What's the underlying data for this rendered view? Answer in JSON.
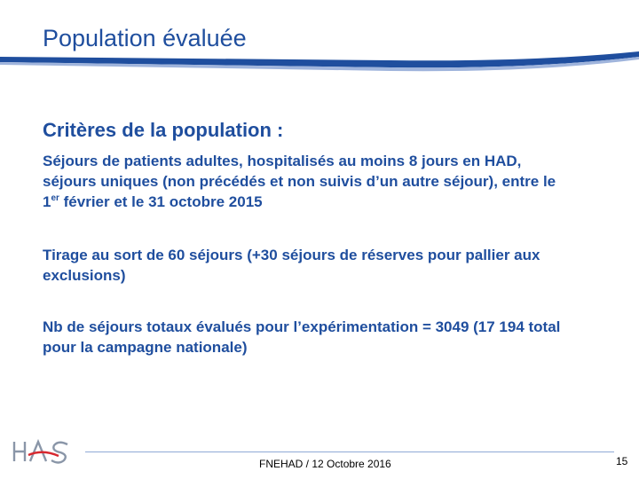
{
  "slide": {
    "title": "Population évaluée",
    "subtitle": "Critères de la population :",
    "paragraph1_a": "Séjours de patients adultes, hospitalisés au moins 8 jours en HAD, séjours uniques (non précédés et non suivis d’un autre séjour), entre le 1",
    "paragraph1_sup": "er",
    "paragraph1_b": " février et le 31 octobre 2015",
    "paragraph2": "Tirage au sort de 60 séjours (+30 séjours de réserves pour pallier aux exclusions)",
    "paragraph3": "Nb de séjours totaux évalués pour l’expérimentation = 3049 (17 194 total pour la campagne nationale)",
    "logo_text": "HAS",
    "footer": "FNEHAD / 12 Octobre 2016",
    "page_number": "15"
  },
  "colors": {
    "accent": "#1f4e9e",
    "logo_red": "#d7282f",
    "logo_gray": "#8a96a8"
  }
}
